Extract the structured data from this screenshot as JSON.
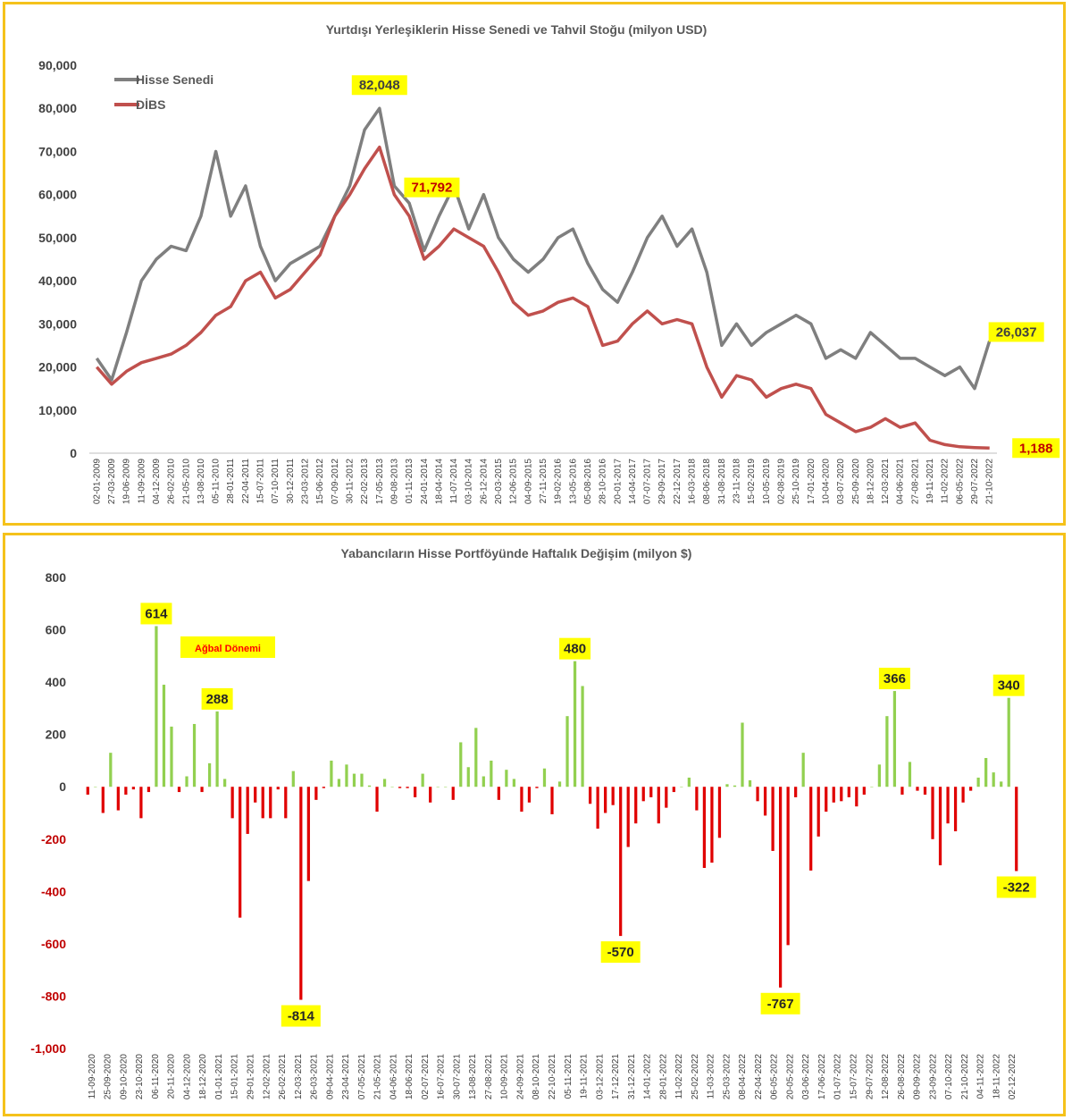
{
  "chart_data": [
    {
      "type": "line",
      "title": "Yurtdışı Yerleşiklerin Hisse Senedi ve Tahvil Stoğu (milyon USD)",
      "ylim": [
        0,
        90000
      ],
      "yticks": [
        "0",
        "10,000",
        "20,000",
        "30,000",
        "40,000",
        "50,000",
        "60,000",
        "70,000",
        "80,000",
        "90,000"
      ],
      "xtick_labels": [
        "02-01-2009",
        "27-03-2009",
        "19-06-2009",
        "11-09-2009",
        "04-12-2009",
        "26-02-2010",
        "21-05-2010",
        "13-08-2010",
        "05-11-2010",
        "28-01-2011",
        "22-04-2011",
        "15-07-2011",
        "07-10-2011",
        "30-12-2011",
        "23-03-2012",
        "15-06-2012",
        "07-09-2012",
        "30-11-2012",
        "22-02-2013",
        "17-05-2013",
        "09-08-2013",
        "01-11-2013",
        "24-01-2014",
        "18-04-2014",
        "11-07-2014",
        "03-10-2014",
        "26-12-2014",
        "20-03-2015",
        "12-06-2015",
        "04-09-2015",
        "27-11-2015",
        "19-02-2016",
        "13-05-2016",
        "05-08-2016",
        "28-10-2016",
        "20-01-2017",
        "14-04-2017",
        "07-07-2017",
        "29-09-2017",
        "22-12-2017",
        "16-03-2018",
        "08-06-2018",
        "31-08-2018",
        "23-11-2018",
        "15-02-2019",
        "10-05-2019",
        "02-08-2019",
        "25-10-2019",
        "17-01-2020",
        "10-04-2020",
        "03-07-2020",
        "25-09-2020",
        "18-12-2020",
        "12-03-2021",
        "04-06-2021",
        "27-08-2021",
        "19-11-2021",
        "11-02-2022",
        "06-05-2022",
        "29-07-2022",
        "21-10-2022"
      ],
      "legend_placement": "top-left",
      "series": [
        {
          "name": "Hisse Senedi",
          "color": "#7f7f7f",
          "values": [
            22000,
            17000,
            28000,
            40000,
            45000,
            48000,
            47000,
            55000,
            70000,
            55000,
            62000,
            48000,
            40000,
            44000,
            46000,
            48000,
            55000,
            62000,
            75000,
            80000,
            62000,
            58000,
            47000,
            55000,
            62000,
            52000,
            60000,
            50000,
            45000,
            42000,
            45000,
            50000,
            52000,
            44000,
            38000,
            35000,
            42000,
            50000,
            55000,
            48000,
            52000,
            42000,
            25000,
            30000,
            25000,
            28000,
            30000,
            32000,
            30000,
            22000,
            24000,
            22000,
            28000,
            25000,
            22000,
            22000,
            20000,
            18000,
            20000,
            15000,
            26037
          ],
          "callouts": [
            {
              "label": "82,048",
              "x_index": 19
            },
            {
              "label": "26,037",
              "x_index": 60
            }
          ]
        },
        {
          "name": "DİBS",
          "color": "#c0504d",
          "values": [
            20000,
            16000,
            19000,
            21000,
            22000,
            23000,
            25000,
            28000,
            32000,
            34000,
            40000,
            42000,
            36000,
            38000,
            42000,
            46000,
            55000,
            60000,
            66000,
            71000,
            60000,
            55000,
            45000,
            48000,
            52000,
            50000,
            48000,
            42000,
            35000,
            32000,
            33000,
            35000,
            36000,
            34000,
            25000,
            26000,
            30000,
            33000,
            30000,
            31000,
            30000,
            20000,
            13000,
            18000,
            17000,
            13000,
            15000,
            16000,
            15000,
            9000,
            7000,
            5000,
            6000,
            8000,
            6000,
            7000,
            3000,
            2000,
            1500,
            1300,
            1188
          ],
          "callouts": [
            {
              "label": "71,792",
              "x_index": 20
            },
            {
              "label": "1,188",
              "x_index": 60
            }
          ]
        }
      ]
    },
    {
      "type": "bar",
      "title": "Yabancıların Hisse Portföyünde Haftalık Değişim (milyon $)",
      "ylim": [
        -1000,
        800
      ],
      "yticks": [
        "-1,000",
        "-800",
        "-600",
        "-400",
        "-200",
        "0",
        "200",
        "400",
        "600",
        "800"
      ],
      "xtick_labels": [
        "11-09-2020",
        "25-09-2020",
        "09-10-2020",
        "23-10-2020",
        "06-11-2020",
        "20-11-2020",
        "04-12-2020",
        "18-12-2020",
        "01-01-2021",
        "15-01-2021",
        "29-01-2021",
        "12-02-2021",
        "26-02-2021",
        "12-03-2021",
        "26-03-2021",
        "09-04-2021",
        "23-04-2021",
        "07-05-2021",
        "21-05-2021",
        "04-06-2021",
        "18-06-2021",
        "02-07-2021",
        "16-07-2021",
        "30-07-2021",
        "13-08-2021",
        "27-08-2021",
        "10-09-2021",
        "24-09-2021",
        "08-10-2021",
        "22-10-2021",
        "05-11-2021",
        "19-11-2021",
        "03-12-2021",
        "17-12-2021",
        "31-12-2021",
        "14-01-2022",
        "28-01-2022",
        "11-02-2022",
        "25-02-2022",
        "11-03-2022",
        "25-03-2022",
        "08-04-2022",
        "22-04-2022",
        "06-05-2022",
        "20-05-2022",
        "03-06-2022",
        "17-06-2022",
        "01-07-2022",
        "15-07-2022",
        "29-07-2022",
        "12-08-2022",
        "26-08-2022",
        "09-09-2022",
        "23-09-2022",
        "07-10-2022",
        "21-10-2022",
        "04-11-2022",
        "18-11-2022",
        "02-12-2022"
      ],
      "positive_color": "#92d050",
      "negative_color": "#e00000",
      "values": [
        -30,
        0,
        -100,
        130,
        -90,
        -30,
        -10,
        -120,
        -20,
        614,
        390,
        230,
        -20,
        40,
        240,
        -20,
        90,
        288,
        30,
        -120,
        -500,
        -180,
        -60,
        -120,
        -120,
        -10,
        -120,
        60,
        -814,
        -360,
        -50,
        -5,
        100,
        30,
        85,
        50,
        50,
        5,
        -95,
        30,
        0,
        -5,
        -5,
        -40,
        50,
        -60,
        0,
        0,
        -50,
        170,
        75,
        225,
        40,
        100,
        -50,
        65,
        30,
        -95,
        -60,
        -5,
        70,
        -105,
        20,
        270,
        480,
        385,
        -65,
        -160,
        -100,
        -70,
        -570,
        -230,
        -140,
        -55,
        -40,
        -140,
        -80,
        -20,
        0,
        35,
        -90,
        -310,
        -290,
        -195,
        10,
        5,
        245,
        25,
        -55,
        -110,
        -245,
        -767,
        -605,
        -40,
        130,
        -320,
        -190,
        -95,
        -60,
        -55,
        -40,
        -75,
        -30,
        0,
        85,
        270,
        366,
        -30,
        95,
        -15,
        -30,
        -200,
        -300,
        -140,
        -170,
        -60,
        -15,
        35,
        110,
        55,
        20,
        340,
        -322
      ],
      "callouts": [
        {
          "label": "614",
          "index": 9
        },
        {
          "label": "288",
          "index": 17
        },
        {
          "label": "-814",
          "index": 28
        },
        {
          "label": "480",
          "index": 64
        },
        {
          "label": "-570",
          "index": 70
        },
        {
          "label": "-767",
          "index": 91
        },
        {
          "label": "366",
          "index": 106
        },
        {
          "label": "340",
          "index": 121
        },
        {
          "label": "-322",
          "index": 122
        }
      ],
      "annotation": "Ağbal Dönemi",
      "annotation_color": "#ff0000",
      "callout_bg": "#ffff00"
    }
  ]
}
